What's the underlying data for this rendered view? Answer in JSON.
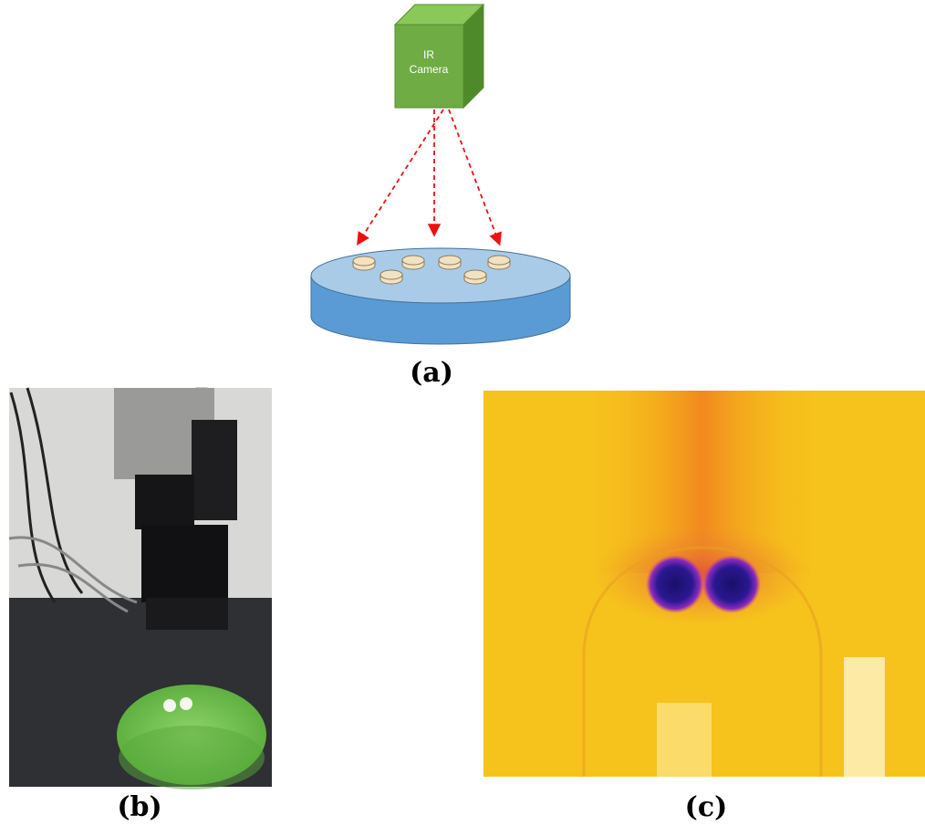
{
  "diagram": {
    "camera_label_lines": [
      "IR",
      "Camera"
    ]
  },
  "captions": [
    "(a)",
    "(b)",
    "(c)"
  ]
}
